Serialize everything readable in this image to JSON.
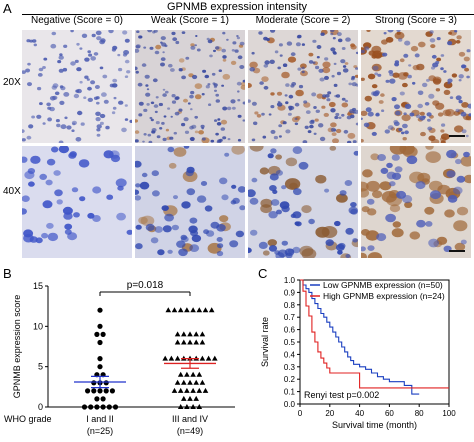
{
  "panel_a": {
    "letter": "A",
    "title": "GPNMB expression intensity",
    "columns": [
      "Negative (Score = 0)",
      "Weak (Score = 1)",
      "Moderate (Score = 2)",
      "Strong (Score = 3)"
    ],
    "rows": [
      "20X",
      "40X"
    ]
  },
  "panel_b": {
    "letter": "B",
    "ylabel": "GPNMB expression score",
    "yticks": [
      "0",
      "5",
      "10",
      "15"
    ],
    "pvalue": "p=0.018",
    "grade_label": "WHO grade",
    "groups": [
      {
        "name": "I and II",
        "n": "(n=25)"
      },
      {
        "name": "III and IV",
        "n": "(n=49)"
      }
    ]
  },
  "panel_c": {
    "letter": "C",
    "ylabel": "Survival rate",
    "xlabel": "Survival time (month)",
    "yticks": [
      "0.0",
      "0.1",
      "0.2",
      "0.3",
      "0.4",
      "0.5",
      "0.6",
      "0.7",
      "0.8",
      "0.9",
      "1.0"
    ],
    "xticks": [
      "0",
      "20",
      "40",
      "60",
      "80",
      "100"
    ],
    "legend": [
      "Low GPNMB expression (n=50)",
      "High GPNMB expression (n=24)"
    ],
    "test_text": "Renyi test p=0.002"
  },
  "chart_data": [
    {
      "type": "scatter",
      "ylabel": "GPNMB expression score",
      "ylim": [
        0,
        15
      ],
      "categories": [
        "I and II",
        "III and IV"
      ],
      "series": [
        {
          "name": "I and II",
          "color": "#000000",
          "marker": "circle",
          "values": [
            12,
            10,
            9,
            9,
            8,
            6,
            5,
            4,
            4,
            3,
            3,
            3,
            2,
            2,
            2,
            2,
            2,
            1,
            1,
            0,
            0,
            0,
            0,
            0,
            0
          ],
          "mean": 3.1,
          "sem": 0.7,
          "bar_color": "#2233cc"
        },
        {
          "name": "III and IV",
          "color": "#000000",
          "marker": "triangle",
          "values": [
            12,
            12,
            12,
            12,
            12,
            12,
            12,
            12,
            9,
            9,
            9,
            9,
            9,
            8,
            8,
            8,
            8,
            8,
            6,
            6,
            6,
            6,
            6,
            6,
            6,
            6,
            6,
            4,
            4,
            4,
            4,
            3,
            3,
            3,
            3,
            3,
            2,
            2,
            2,
            2,
            2,
            2,
            1,
            1,
            1,
            0,
            0,
            0,
            0
          ],
          "mean": 5.4,
          "sem": 0.6,
          "bar_color": "#dd2222"
        }
      ],
      "annotations": [
        "p=0.018"
      ]
    },
    {
      "type": "line",
      "title": "",
      "xlabel": "Survival time (month)",
      "ylabel": "Survival rate",
      "xlim": [
        0,
        100
      ],
      "ylim": [
        0,
        1.0
      ],
      "legend": "top-right",
      "series": [
        {
          "name": "Low GPNMB expression (n=50)",
          "color": "#1a3fc0",
          "x": [
            0,
            2,
            4,
            6,
            8,
            10,
            12,
            14,
            16,
            18,
            20,
            22,
            24,
            26,
            28,
            30,
            32,
            34,
            36,
            40,
            44,
            48,
            52,
            56,
            60,
            70,
            75,
            80
          ],
          "y": [
            1.0,
            0.96,
            0.93,
            0.9,
            0.85,
            0.81,
            0.77,
            0.73,
            0.7,
            0.66,
            0.62,
            0.58,
            0.54,
            0.5,
            0.46,
            0.42,
            0.38,
            0.35,
            0.32,
            0.3,
            0.28,
            0.25,
            0.22,
            0.2,
            0.18,
            0.15,
            0.08,
            0.08
          ]
        },
        {
          "name": "High GPNMB expression (n=24)",
          "color": "#e02020",
          "x": [
            0,
            2,
            4,
            6,
            8,
            10,
            12,
            14,
            16,
            18,
            20,
            24,
            30,
            35,
            40,
            45,
            100
          ],
          "y": [
            1.0,
            0.91,
            0.79,
            0.71,
            0.58,
            0.5,
            0.42,
            0.37,
            0.33,
            0.29,
            0.25,
            0.25,
            0.25,
            0.25,
            0.13,
            0.13,
            0.13
          ]
        }
      ],
      "annotations": [
        "Renyi test p=0.002"
      ]
    }
  ]
}
